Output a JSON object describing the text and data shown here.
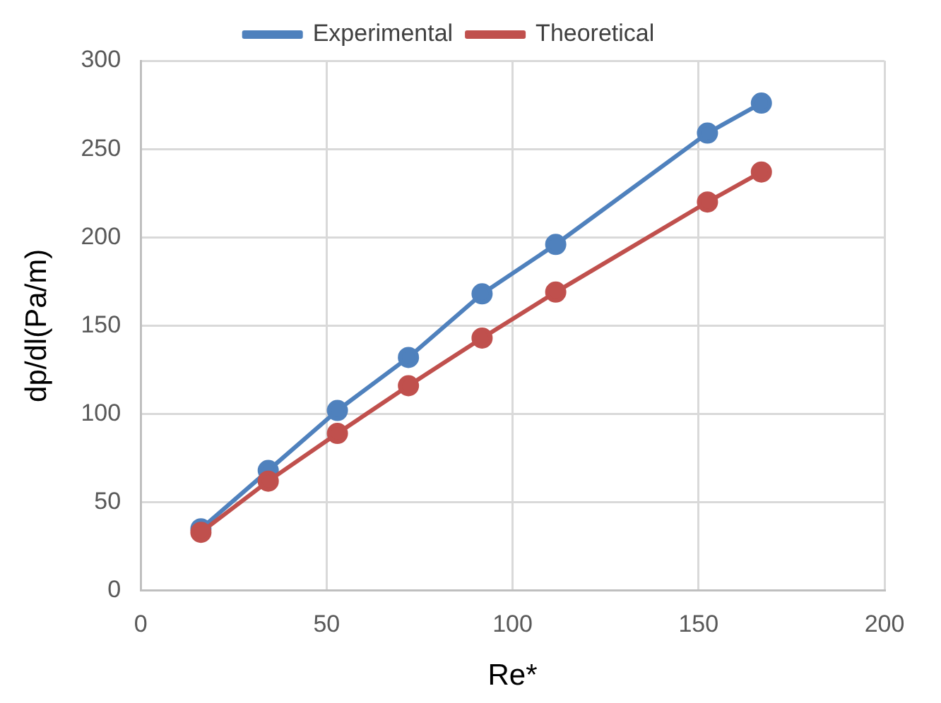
{
  "chart_data": {
    "type": "line",
    "xlabel": "Re*",
    "ylabel": "dp/dl(Pa/m)",
    "xlim": [
      0,
      200
    ],
    "xticks": [
      0,
      50,
      100,
      150,
      200
    ],
    "ylim": [
      0,
      300
    ],
    "yticks": [
      0,
      50,
      100,
      150,
      200,
      250,
      300
    ],
    "grid": true,
    "legend": "top",
    "marker": "circle",
    "line_style": "solid",
    "series": [
      {
        "name": "Experimental",
        "color": "#4f81bd",
        "x": [
          16.2,
          34.3,
          52.9,
          72.0,
          91.8,
          111.6,
          152.4,
          166.9
        ],
        "values": [
          35,
          68,
          102,
          132,
          168,
          196,
          259,
          276
        ]
      },
      {
        "name": "Theoretical",
        "color": "#c0504d",
        "x": [
          16.2,
          34.3,
          52.9,
          72.0,
          91.8,
          111.6,
          152.4,
          166.9
        ],
        "values": [
          33,
          62,
          89,
          116,
          143,
          169,
          220,
          237
        ]
      }
    ]
  }
}
